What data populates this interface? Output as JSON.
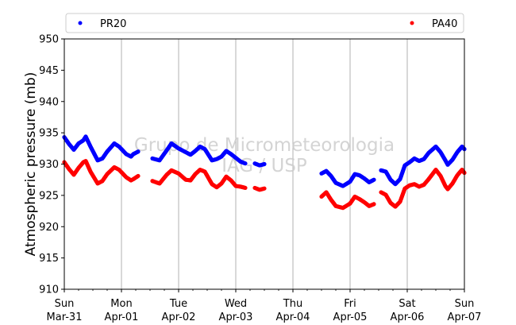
{
  "chart_data": {
    "type": "scatter",
    "ylabel": "Atmospheric pressure (mb)",
    "xlabel": "",
    "ylim": [
      910,
      950
    ],
    "xlim": [
      "2019-03-31T00:00",
      "2019-04-07T00:00"
    ],
    "yticks": [
      "910",
      "915",
      "920",
      "925",
      "930",
      "935",
      "940",
      "945",
      "950"
    ],
    "xticks": [
      {
        "line1": "Sun",
        "line2": "Mar-31"
      },
      {
        "line1": "Mon",
        "line2": "Apr-01"
      },
      {
        "line1": "Tue",
        "line2": "Apr-02"
      },
      {
        "line1": "Wed",
        "line2": "Apr-03"
      },
      {
        "line1": "Thu",
        "line2": "Apr-04"
      },
      {
        "line1": "Fri",
        "line2": "Apr-05"
      },
      {
        "line1": "Sat",
        "line2": "Apr-06"
      },
      {
        "line1": "Sun",
        "line2": "Apr-07"
      }
    ],
    "grid": "vertical",
    "legend_position": "top",
    "watermark": [
      "Grupo de Micrometeorologia",
      "IAG / USP"
    ],
    "series": [
      {
        "name": "PR20",
        "color": "#0000ff",
        "segments": [
          [
            [
              "2019-03-31T00:00",
              934.3
            ],
            [
              "2019-03-31T02:00",
              933.2
            ],
            [
              "2019-03-31T04:00",
              932.3
            ],
            [
              "2019-03-31T06:00",
              933.3
            ],
            [
              "2019-03-31T08:00",
              933.8
            ],
            [
              "2019-03-31T09:00",
              934.4
            ],
            [
              "2019-03-31T11:00",
              932.8
            ],
            [
              "2019-03-31T14:00",
              930.6
            ],
            [
              "2019-03-31T16:00",
              930.9
            ],
            [
              "2019-03-31T18:00",
              932.0
            ],
            [
              "2019-03-31T21:00",
              933.3
            ],
            [
              "2019-03-31T23:00",
              932.8
            ],
            [
              "2019-04-01T02:00",
              931.6
            ],
            [
              "2019-04-01T04:00",
              931.2
            ],
            [
              "2019-04-01T05:00",
              931.6
            ],
            [
              "2019-04-01T07:00",
              932.0
            ]
          ],
          [
            [
              "2019-04-01T13:00",
              930.9
            ],
            [
              "2019-04-01T16:00",
              930.6
            ],
            [
              "2019-04-01T19:00",
              932.2
            ],
            [
              "2019-04-01T21:00",
              933.3
            ],
            [
              "2019-04-02T00:00",
              932.5
            ],
            [
              "2019-04-02T03:00",
              931.9
            ],
            [
              "2019-04-02T05:00",
              931.5
            ],
            [
              "2019-04-02T07:00",
              932.1
            ],
            [
              "2019-04-02T09:00",
              932.8
            ],
            [
              "2019-04-02T11:00",
              932.4
            ],
            [
              "2019-04-02T14:00",
              930.6
            ],
            [
              "2019-04-02T16:00",
              930.8
            ],
            [
              "2019-04-02T18:00",
              931.2
            ],
            [
              "2019-04-02T20:00",
              932.1
            ],
            [
              "2019-04-02T22:00",
              931.6
            ],
            [
              "2019-04-03T02:00",
              930.4
            ],
            [
              "2019-04-03T04:00",
              930.1
            ]
          ],
          [
            [
              "2019-04-03T08:00",
              930.1
            ],
            [
              "2019-04-03T10:00",
              929.8
            ],
            [
              "2019-04-03T12:00",
              930.0
            ]
          ],
          [
            [
              "2019-04-04T12:00",
              928.5
            ],
            [
              "2019-04-04T14:00",
              928.9
            ],
            [
              "2019-04-04T16:00",
              928.1
            ],
            [
              "2019-04-04T18:00",
              927.0
            ],
            [
              "2019-04-04T21:00",
              926.5
            ],
            [
              "2019-04-05T00:00",
              927.2
            ],
            [
              "2019-04-05T02:00",
              928.4
            ],
            [
              "2019-04-05T04:00",
              928.2
            ],
            [
              "2019-04-05T06:00",
              927.7
            ],
            [
              "2019-04-05T08:00",
              927.1
            ],
            [
              "2019-04-05T10:00",
              927.5
            ]
          ],
          [
            [
              "2019-04-05T13:00",
              929.0
            ],
            [
              "2019-04-05T15:00",
              928.8
            ],
            [
              "2019-04-05T17:00",
              927.5
            ],
            [
              "2019-04-05T19:00",
              926.8
            ],
            [
              "2019-04-05T21:00",
              927.6
            ],
            [
              "2019-04-05T23:00",
              929.8
            ],
            [
              "2019-04-06T01:00",
              930.3
            ],
            [
              "2019-04-06T03:00",
              930.9
            ],
            [
              "2019-04-06T05:00",
              930.5
            ],
            [
              "2019-04-06T07:00",
              930.8
            ],
            [
              "2019-04-06T09:00",
              931.8
            ],
            [
              "2019-04-06T12:00",
              932.8
            ],
            [
              "2019-04-06T14:00",
              931.9
            ],
            [
              "2019-04-06T16:00",
              930.6
            ],
            [
              "2019-04-06T17:00",
              929.9
            ],
            [
              "2019-04-06T19:00",
              930.7
            ],
            [
              "2019-04-06T21:00",
              931.9
            ],
            [
              "2019-04-06T23:00",
              932.8
            ],
            [
              "2019-04-07T00:00",
              932.4
            ]
          ]
        ]
      },
      {
        "name": "PA40",
        "color": "#ff0000",
        "segments": [
          [
            [
              "2019-03-31T00:00",
              930.3
            ],
            [
              "2019-03-31T02:00",
              929.2
            ],
            [
              "2019-03-31T04:00",
              928.3
            ],
            [
              "2019-03-31T06:00",
              929.4
            ],
            [
              "2019-03-31T08:00",
              930.3
            ],
            [
              "2019-03-31T09:00",
              930.5
            ],
            [
              "2019-03-31T11:00",
              928.8
            ],
            [
              "2019-03-31T14:00",
              926.9
            ],
            [
              "2019-03-31T16:00",
              927.3
            ],
            [
              "2019-03-31T18:00",
              928.4
            ],
            [
              "2019-03-31T21:00",
              929.5
            ],
            [
              "2019-03-31T23:00",
              929.1
            ],
            [
              "2019-04-01T02:00",
              927.9
            ],
            [
              "2019-04-01T04:00",
              927.4
            ],
            [
              "2019-04-01T05:00",
              927.6
            ],
            [
              "2019-04-01T07:00",
              928.1
            ]
          ],
          [
            [
              "2019-04-01T13:00",
              927.3
            ],
            [
              "2019-04-01T16:00",
              926.9
            ],
            [
              "2019-04-01T19:00",
              928.3
            ],
            [
              "2019-04-01T21:00",
              929.0
            ],
            [
              "2019-04-02T00:00",
              928.5
            ],
            [
              "2019-04-02T03:00",
              927.5
            ],
            [
              "2019-04-02T05:00",
              927.4
            ],
            [
              "2019-04-02T07:00",
              928.4
            ],
            [
              "2019-04-02T09:00",
              929.1
            ],
            [
              "2019-04-02T11:00",
              928.8
            ],
            [
              "2019-04-02T14:00",
              926.8
            ],
            [
              "2019-04-02T16:00",
              926.3
            ],
            [
              "2019-04-02T18:00",
              926.9
            ],
            [
              "2019-04-02T20:00",
              928.0
            ],
            [
              "2019-04-02T22:00",
              927.4
            ],
            [
              "2019-04-03T00:00",
              926.5
            ],
            [
              "2019-04-03T02:00",
              926.4
            ],
            [
              "2019-04-03T04:00",
              926.2
            ]
          ],
          [
            [
              "2019-04-03T08:00",
              926.2
            ],
            [
              "2019-04-03T10:00",
              925.9
            ],
            [
              "2019-04-03T12:00",
              926.1
            ]
          ],
          [
            [
              "2019-04-04T12:00",
              924.8
            ],
            [
              "2019-04-04T14:00",
              925.5
            ],
            [
              "2019-04-04T16:00",
              924.3
            ],
            [
              "2019-04-04T18:00",
              923.3
            ],
            [
              "2019-04-04T21:00",
              923.0
            ],
            [
              "2019-04-05T00:00",
              923.7
            ],
            [
              "2019-04-05T02:00",
              924.8
            ],
            [
              "2019-04-05T04:00",
              924.4
            ],
            [
              "2019-04-05T06:00",
              923.9
            ],
            [
              "2019-04-05T08:00",
              923.3
            ],
            [
              "2019-04-05T10:00",
              923.6
            ]
          ],
          [
            [
              "2019-04-05T13:00",
              925.5
            ],
            [
              "2019-04-05T15:00",
              925.1
            ],
            [
              "2019-04-05T17:00",
              923.8
            ],
            [
              "2019-04-05T19:00",
              923.2
            ],
            [
              "2019-04-05T21:00",
              924.0
            ],
            [
              "2019-04-05T23:00",
              926.1
            ],
            [
              "2019-04-06T01:00",
              926.6
            ],
            [
              "2019-04-06T03:00",
              926.8
            ],
            [
              "2019-04-06T05:00",
              926.4
            ],
            [
              "2019-04-06T07:00",
              926.7
            ],
            [
              "2019-04-06T09:00",
              927.6
            ],
            [
              "2019-04-06T12:00",
              929.1
            ],
            [
              "2019-04-06T14:00",
              928.1
            ],
            [
              "2019-04-06T16:00",
              926.5
            ],
            [
              "2019-04-06T17:00",
              926.0
            ],
            [
              "2019-04-06T19:00",
              926.9
            ],
            [
              "2019-04-06T21:00",
              928.2
            ],
            [
              "2019-04-06T23:00",
              929.1
            ],
            [
              "2019-04-07T00:00",
              928.6
            ]
          ]
        ]
      }
    ]
  }
}
